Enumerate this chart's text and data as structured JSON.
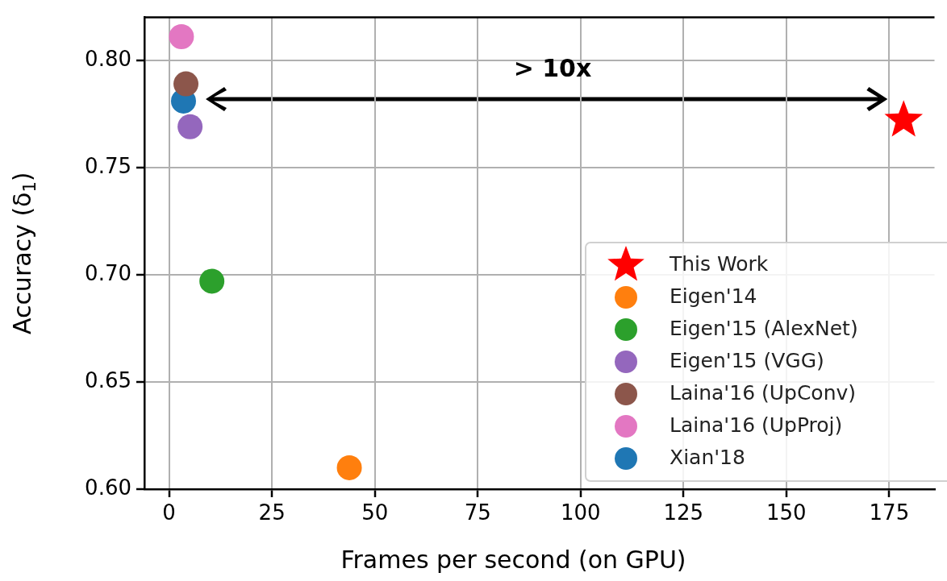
{
  "chart_data": {
    "type": "scatter",
    "xlabel": "Frames per second (on GPU)",
    "ylabel": "Accuracy (δ$_{1}$)",
    "xlim": [
      -6,
      186
    ],
    "xticks": [
      0,
      25,
      50,
      75,
      100,
      125,
      150,
      175
    ],
    "ylim": [
      0.6,
      0.82
    ],
    "yticks": [
      {
        "value": 0.6,
        "label": "0.60"
      },
      0.65,
      {
        "value": 0.7,
        "label": "0.70"
      },
      0.75,
      {
        "value": 0.8,
        "label": "0.80"
      }
    ],
    "grid": true,
    "legend": "bottom right",
    "marker": "circle",
    "series": [
      {
        "name": "This Work",
        "color": "#ff0000",
        "marker": "star",
        "x": [
          178.5
        ],
        "values": [
          0.772
        ]
      },
      {
        "name": "Eigen'14",
        "color": "#ff7f0e",
        "x": [
          43.8
        ],
        "values": [
          0.61
        ]
      },
      {
        "name": "Eigen'15 (AlexNet)",
        "color": "#2ca02c",
        "x": [
          10.4
        ],
        "values": [
          0.697
        ]
      },
      {
        "name": "Eigen'15 (VGG)",
        "color": "#9467bd",
        "x": [
          5.1
        ],
        "values": [
          0.769
        ]
      },
      {
        "name": "Laina'16 (UpConv)",
        "color": "#8c564b",
        "x": [
          4.1
        ],
        "values": [
          0.789
        ]
      },
      {
        "name": "Laina'16 (UpProj)",
        "color": "#e377c2",
        "x": [
          3.0
        ],
        "values": [
          0.811
        ]
      },
      {
        "name": "Xian'18",
        "color": "#1f77b4",
        "x": [
          3.5
        ],
        "values": [
          0.781
        ]
      }
    ],
    "annotations": [
      "> 10x"
    ]
  }
}
